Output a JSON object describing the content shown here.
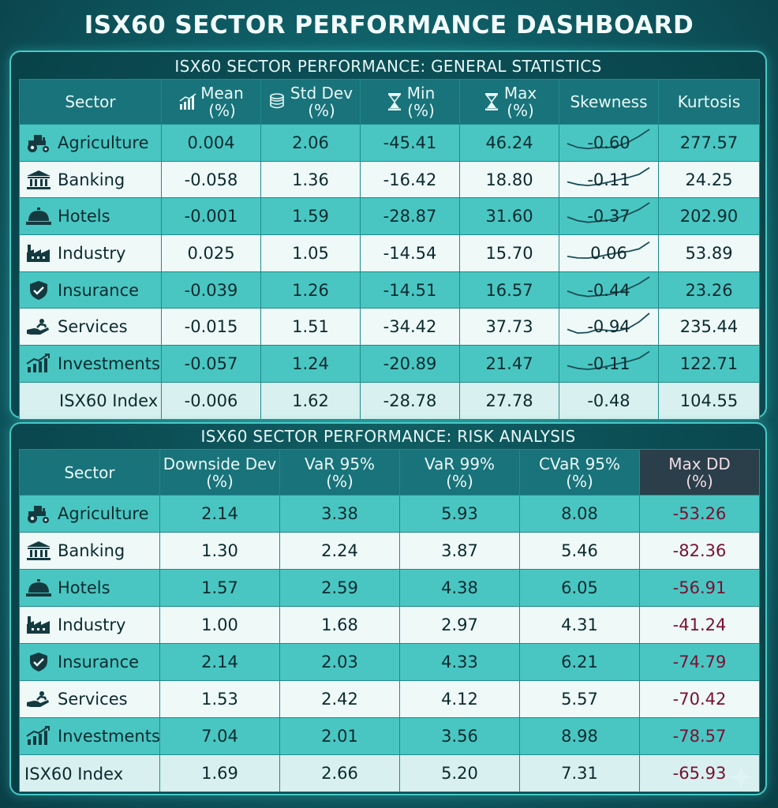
{
  "dashboard_title": "ISX60 SECTOR PERFORMANCE DASHBOARD",
  "colors": {
    "accent": "#48c9c6",
    "header": "#19737a",
    "band": "#49c6c2",
    "maxdd_text": "#7a1030"
  },
  "chart_data": [
    {
      "type": "table",
      "title": "ISX60 SECTOR PERFORMANCE: GENERAL STATISTICS",
      "columns": [
        "Sector",
        "Mean (%)",
        "Std Dev (%)",
        "Min (%)",
        "Max (%)",
        "Skewness",
        "Kurtosis"
      ],
      "column_icons": [
        "",
        "bar-chart-icon",
        "coins-icon",
        "hourglass-icon",
        "hourglass-icon",
        "",
        ""
      ],
      "rows": [
        {
          "sector": "Agriculture",
          "icon": "tractor-icon",
          "values": [
            "0.004",
            "2.06",
            "-45.41",
            "46.24",
            "-0.60",
            "277.57"
          ]
        },
        {
          "sector": "Banking",
          "icon": "bank-icon",
          "values": [
            "-0.058",
            "1.36",
            "-16.42",
            "18.80",
            "-0.11",
            "24.25"
          ]
        },
        {
          "sector": "Hotels",
          "icon": "hotel-bell-icon",
          "values": [
            "-0.001",
            "1.59",
            "-28.87",
            "31.60",
            "-0.37",
            "202.90"
          ]
        },
        {
          "sector": "Industry",
          "icon": "factory-icon",
          "values": [
            "0.025",
            "1.05",
            "-14.54",
            "15.70",
            "0.06",
            "53.89"
          ]
        },
        {
          "sector": "Insurance",
          "icon": "shield-icon",
          "values": [
            "-0.039",
            "1.26",
            "-14.51",
            "16.57",
            "-0.44",
            "23.26"
          ]
        },
        {
          "sector": "Services",
          "icon": "service-hand-icon",
          "values": [
            "-0.015",
            "1.51",
            "-34.42",
            "37.73",
            "-0.94",
            "235.44"
          ]
        },
        {
          "sector": "Investments",
          "icon": "growth-chart-icon",
          "values": [
            "-0.057",
            "1.24",
            "-20.89",
            "21.47",
            "-0.11",
            "122.71"
          ]
        },
        {
          "sector": "ISX60 Index",
          "icon": "",
          "values": [
            "-0.006",
            "1.62",
            "-28.78",
            "27.78",
            "-0.48",
            "104.55"
          ]
        }
      ]
    },
    {
      "type": "table",
      "title": "ISX60 SECTOR PERFORMANCE: RISK ANALYSIS",
      "columns": [
        "Sector",
        "Downside Dev (%)",
        "VaR 95% (%)",
        "VaR 99% (%)",
        "CVaR 95% (%)",
        "Max DD (%)"
      ],
      "rows": [
        {
          "sector": "Agriculture",
          "icon": "tractor-icon",
          "values": [
            "2.14",
            "3.38",
            "5.93",
            "8.08",
            "-53.26"
          ]
        },
        {
          "sector": "Banking",
          "icon": "bank-icon",
          "values": [
            "1.30",
            "2.24",
            "3.87",
            "5.46",
            "-82.36"
          ]
        },
        {
          "sector": "Hotels",
          "icon": "hotel-bell-icon",
          "values": [
            "1.57",
            "2.59",
            "4.38",
            "6.05",
            "-56.91"
          ]
        },
        {
          "sector": "Industry",
          "icon": "factory-icon",
          "values": [
            "1.00",
            "1.68",
            "2.97",
            "4.31",
            "-41.24"
          ]
        },
        {
          "sector": "Insurance",
          "icon": "shield-icon",
          "values": [
            "2.14",
            "2.03",
            "4.33",
            "6.21",
            "-74.79"
          ]
        },
        {
          "sector": "Services",
          "icon": "service-hand-icon",
          "values": [
            "1.53",
            "2.42",
            "4.12",
            "5.57",
            "-70.42"
          ]
        },
        {
          "sector": "Investments",
          "icon": "growth-chart-icon",
          "values": [
            "7.04",
            "2.01",
            "3.56",
            "8.98",
            "-78.57"
          ]
        },
        {
          "sector": "ISX60 Index",
          "icon": "",
          "values": [
            "1.69",
            "2.66",
            "5.20",
            "7.31",
            "-65.93"
          ]
        }
      ]
    }
  ]
}
